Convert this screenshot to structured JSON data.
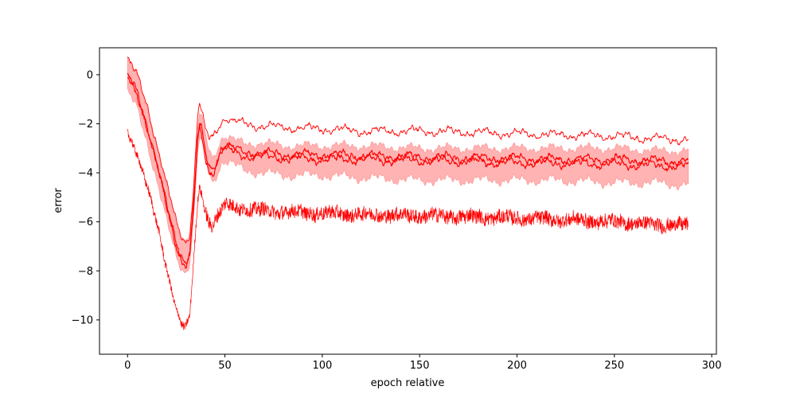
{
  "chart_data": {
    "type": "line",
    "title": "",
    "xlabel": "epoch relative",
    "ylabel": "error",
    "xlim": [
      -14.4,
      302.4
    ],
    "ylim": [
      -11.4,
      1.1
    ],
    "xticks": [
      0,
      50,
      100,
      150,
      200,
      250,
      300
    ],
    "yticks": [
      0,
      -2,
      -4,
      -6,
      -8,
      -10
    ],
    "xtick_labels": [
      "0",
      "50",
      "100",
      "150",
      "200",
      "250",
      "300"
    ],
    "ytick_labels": [
      "0",
      "−2",
      "−4",
      "−6",
      "−8",
      "−10"
    ],
    "grid": false,
    "legend": "none",
    "colors": {
      "line": "#ff0000",
      "band": "#ffb3b3",
      "band_edge": "#ff9a9a"
    },
    "x_end": 288,
    "band": {
      "x": [
        0,
        5,
        10,
        15,
        20,
        25,
        28,
        30,
        32,
        34,
        36,
        37,
        38,
        40,
        42,
        44,
        46,
        48,
        50,
        55,
        60,
        70,
        80,
        90,
        100,
        120,
        150,
        180,
        200,
        220,
        250,
        270,
        288
      ],
      "upper": [
        0.55,
        -0.1,
        -1.3,
        -2.9,
        -4.6,
        -6.1,
        -6.6,
        -6.7,
        -6.3,
        -4.5,
        -2.3,
        -1.6,
        -1.8,
        -2.5,
        -3.1,
        -3.4,
        -3.0,
        -2.6,
        -2.5,
        -2.7,
        -2.8,
        -2.8,
        -2.9,
        -2.9,
        -2.9,
        -2.9,
        -3.0,
        -3.0,
        -3.0,
        -3.0,
        -3.0,
        -3.1,
        -3.1
      ],
      "lower": [
        -0.75,
        -1.4,
        -2.7,
        -4.3,
        -6.0,
        -7.4,
        -7.9,
        -8.0,
        -7.6,
        -5.8,
        -3.3,
        -2.6,
        -2.8,
        -3.5,
        -4.1,
        -4.4,
        -4.0,
        -3.6,
        -3.5,
        -3.7,
        -3.9,
        -4.0,
        -4.1,
        -4.1,
        -4.1,
        -4.2,
        -4.3,
        -4.3,
        -4.3,
        -4.3,
        -4.4,
        -4.4,
        -4.5
      ]
    },
    "series": [
      {
        "x": [
          0,
          5,
          10,
          15,
          20,
          25,
          28,
          30,
          32,
          34,
          36,
          37,
          38,
          40,
          42,
          44,
          46,
          48,
          50,
          55,
          60,
          70,
          80,
          100,
          120,
          150,
          180,
          200,
          220,
          250,
          270,
          288
        ],
        "y": [
          0.6,
          -0.05,
          -1.2,
          -2.8,
          -4.5,
          -6.0,
          -6.6,
          -6.8,
          -6.5,
          -4.6,
          -1.7,
          -1.2,
          -1.5,
          -2.3,
          -2.6,
          -2.5,
          -2.2,
          -1.9,
          -1.75,
          -1.95,
          -2.0,
          -2.1,
          -2.15,
          -2.2,
          -2.3,
          -2.3,
          -2.35,
          -2.4,
          -2.45,
          -2.5,
          -2.6,
          -2.65
        ]
      },
      {
        "x": [
          0,
          5,
          10,
          15,
          20,
          25,
          28,
          30,
          32,
          34,
          36,
          37,
          38,
          40,
          42,
          44,
          46,
          48,
          50,
          55,
          60,
          70,
          80,
          100,
          120,
          150,
          180,
          200,
          220,
          250,
          270,
          288
        ],
        "y": [
          -0.05,
          -0.7,
          -2.0,
          -3.6,
          -5.3,
          -6.8,
          -7.4,
          -7.6,
          -7.2,
          -5.3,
          -2.6,
          -2.1,
          -2.3,
          -3.2,
          -3.75,
          -3.8,
          -3.4,
          -3.0,
          -2.9,
          -3.05,
          -3.15,
          -3.2,
          -3.25,
          -3.25,
          -3.3,
          -3.35,
          -3.4,
          -3.4,
          -3.45,
          -3.45,
          -3.5,
          -3.55
        ]
      },
      {
        "x": [
          0,
          5,
          10,
          15,
          20,
          25,
          28,
          30,
          32,
          34,
          36,
          37,
          38,
          40,
          42,
          44,
          46,
          48,
          50,
          55,
          60,
          70,
          80,
          100,
          120,
          150,
          180,
          200,
          220,
          250,
          270,
          288
        ],
        "y": [
          -0.15,
          -0.8,
          -2.1,
          -3.7,
          -5.4,
          -6.95,
          -7.6,
          -7.8,
          -7.4,
          -5.5,
          -2.8,
          -2.3,
          -2.5,
          -3.4,
          -3.95,
          -3.95,
          -3.55,
          -3.1,
          -3.0,
          -3.2,
          -3.3,
          -3.35,
          -3.4,
          -3.45,
          -3.45,
          -3.5,
          -3.55,
          -3.6,
          -3.6,
          -3.65,
          -3.7,
          -3.75
        ]
      },
      {
        "x": [
          0,
          5,
          10,
          15,
          20,
          25,
          28,
          30,
          32,
          34,
          36,
          37,
          38,
          40,
          42,
          44,
          46,
          48,
          50,
          52,
          55,
          60,
          70,
          80,
          100,
          120,
          150,
          180,
          200,
          220,
          250,
          270,
          288
        ],
        "y": [
          -2.4,
          -3.2,
          -4.5,
          -6.1,
          -7.9,
          -9.5,
          -10.2,
          -10.3,
          -9.9,
          -7.5,
          -5.3,
          -4.6,
          -4.8,
          -5.6,
          -6.0,
          -6.1,
          -5.8,
          -5.5,
          -5.35,
          -5.3,
          -5.4,
          -5.45,
          -5.55,
          -5.6,
          -5.65,
          -5.7,
          -5.75,
          -5.8,
          -5.85,
          -5.9,
          -6.0,
          -6.1,
          -6.15
        ]
      }
    ]
  }
}
